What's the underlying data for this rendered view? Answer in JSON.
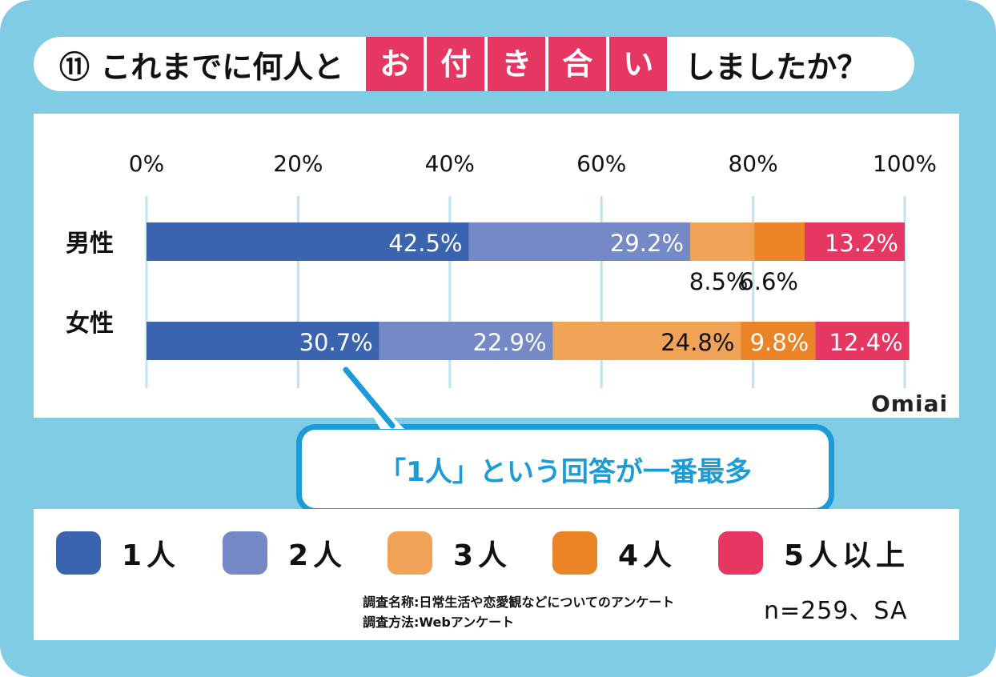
{
  "title": {
    "prefix": "⑪ これまでに何人と",
    "highlight": [
      "お",
      "付",
      "き",
      "合",
      "い"
    ],
    "suffix": "しましたか？"
  },
  "chart_data": {
    "type": "bar",
    "orientation": "horizontal",
    "stacked": true,
    "categories": [
      "男性",
      "女性"
    ],
    "xlim": [
      0,
      100
    ],
    "xticks": [
      "0%",
      "20%",
      "40%",
      "60%",
      "80%",
      "100%"
    ],
    "grid": true,
    "series": [
      {
        "name": "1人",
        "color": "#3a63b0",
        "values": [
          42.5,
          30.7
        ],
        "labels": [
          "42.5%",
          "30.7%"
        ]
      },
      {
        "name": "2人",
        "color": "#7489c6",
        "values": [
          29.2,
          22.9
        ],
        "labels": [
          "29.2%",
          "22.9%"
        ]
      },
      {
        "name": "3人",
        "color": "#f0a257",
        "values": [
          8.5,
          24.8
        ],
        "labels": [
          "8.5%",
          "24.8%"
        ]
      },
      {
        "name": "4人",
        "color": "#eb8427",
        "values": [
          6.6,
          9.8
        ],
        "labels": [
          "6.6%",
          "9.8%"
        ]
      },
      {
        "name": "5人以上",
        "color": "#e63762",
        "values": [
          13.2,
          12.4
        ],
        "labels": [
          "13.2%",
          "12.4%"
        ]
      }
    ],
    "legend_placement": "bottom"
  },
  "callout": "「1人」という回答が一番最多",
  "logo": "Omiai",
  "source": {
    "line1": "調査名称:日常生活や恋愛観などについてのアンケート",
    "line2": "調査方法:Webアンケート"
  },
  "sample": "n=259、SA"
}
